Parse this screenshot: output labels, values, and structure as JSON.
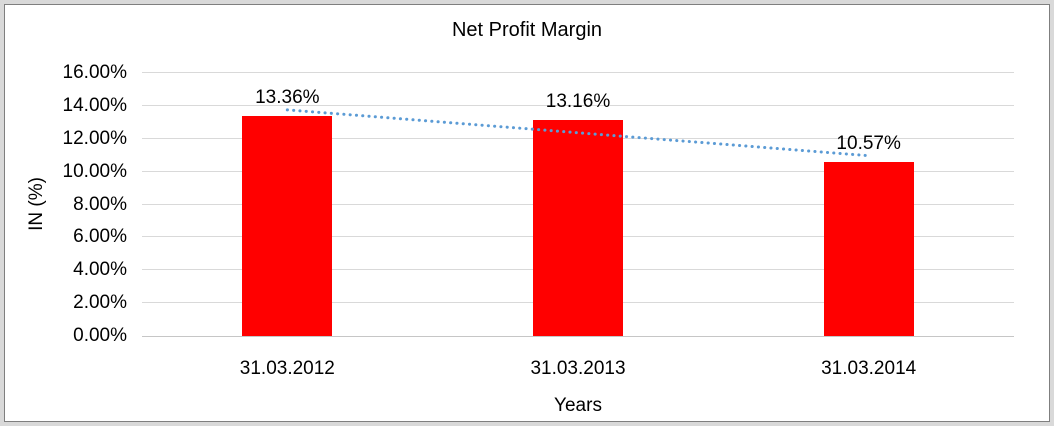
{
  "chart_data": {
    "type": "bar",
    "title": "Net Profit Margin",
    "xlabel": "Years",
    "ylabel": "IN (%)",
    "categories": [
      "31.03.2012",
      "31.03.2013",
      "31.03.2014"
    ],
    "values": [
      13.36,
      13.16,
      10.57
    ],
    "data_labels": [
      "13.36%",
      "13.16%",
      "10.57%"
    ],
    "ylim": [
      0,
      16
    ],
    "ytick_step": 2,
    "ytick_labels": [
      "0.00%",
      "2.00%",
      "4.00%",
      "6.00%",
      "8.00%",
      "10.00%",
      "12.00%",
      "14.00%",
      "16.00%"
    ],
    "grid": true,
    "legend": "none",
    "trendline": {
      "fit": "linear",
      "style": "dotted"
    },
    "colors": {
      "bar": "#FF0000",
      "trendline": "#5B9BD5",
      "gridline": "#D9D9D9",
      "axis_line": "#C6C6C6",
      "text": "#000000",
      "frame_margin": "#D9D9D9",
      "frame_border": "#7F7F7F"
    }
  }
}
